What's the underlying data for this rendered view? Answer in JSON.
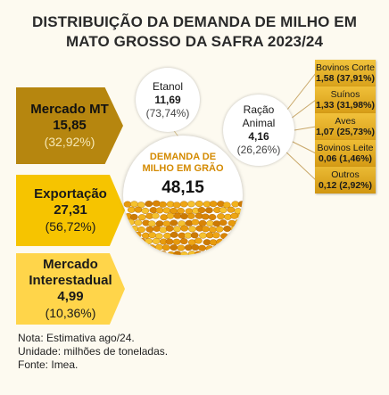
{
  "title": {
    "line1": "DISTRIBUIÇÃO DA DEMANDA DE MILHO EM",
    "line2": "MATO GROSSO DA SAFRA 2023/24"
  },
  "center": {
    "label1": "DEMANDA DE",
    "label2": "MILHO EM GRÃO",
    "value": "48,15"
  },
  "left": [
    {
      "name": "Mercado MT",
      "value": "15,85",
      "pct": "(32,92%)"
    },
    {
      "name": "Exportação",
      "value": "27,31",
      "pct": "(56,72%)"
    },
    {
      "name1": "Mercado",
      "name2": "Interestadual",
      "value": "4,99",
      "pct": "(10,36%)"
    }
  ],
  "etanol": {
    "name": "Etanol",
    "value": "11,69",
    "pct": "(73,74%)"
  },
  "racao": {
    "name1": "Ração",
    "name2": "Animal",
    "value": "4,16",
    "pct": "(26,26%)"
  },
  "racao_breakdown": [
    {
      "name": "Bovinos Corte",
      "value": "1,58 (37,91%)"
    },
    {
      "name": "Suínos",
      "value": "1,33 (31,98%)"
    },
    {
      "name": "Aves",
      "value": "1,07 (25,73%)"
    },
    {
      "name": "Bovinos Leite",
      "value": "0,06 (1,46%)"
    },
    {
      "name": "Outros",
      "value": "0,12 (2,92%)"
    }
  ],
  "notes": {
    "line1": "Nota: Estimativa ago/24.",
    "line2": "Unidade: milhões de toneladas.",
    "line3": "Fonte: Imea."
  },
  "colors": {
    "mercado_mt": "#b6860f",
    "exportacao": "#f6c400",
    "interestadual": "#ffd54a",
    "accent_text": "#d48a00",
    "lines": "#c9a86a"
  }
}
